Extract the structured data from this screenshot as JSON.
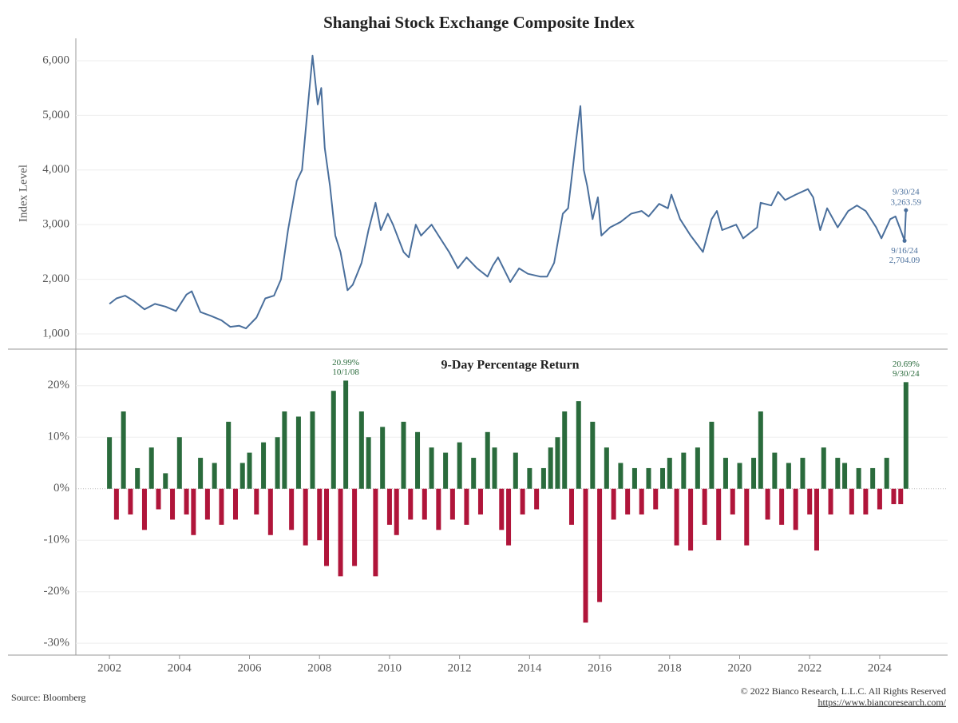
{
  "chart_data": [
    {
      "type": "line",
      "title": "Shanghai Stock Exchange Composite Index",
      "ylabel": "Index Level",
      "color": "#4a6f9c",
      "grid": true,
      "xlim": [
        2001.04,
        2025.94
      ],
      "ylim": [
        722,
        6409
      ],
      "yticks": [
        {
          "value": 1000,
          "label": "1,000"
        },
        {
          "value": 2000,
          "label": "2,000"
        },
        {
          "value": 3000,
          "label": "3,000"
        },
        {
          "value": 4000,
          "label": "4,000"
        },
        {
          "value": 5000,
          "label": "5,000"
        },
        {
          "value": 6000,
          "label": "6,000"
        }
      ],
      "x": [
        2002.0,
        2002.2,
        2002.45,
        2002.7,
        2003.0,
        2003.3,
        2003.6,
        2003.9,
        2004.2,
        2004.35,
        2004.6,
        2004.9,
        2005.2,
        2005.45,
        2005.7,
        2005.9,
        2006.2,
        2006.45,
        2006.7,
        2006.9,
        2007.1,
        2007.35,
        2007.5,
        2007.7,
        2007.8,
        2007.95,
        2008.05,
        2008.15,
        2008.3,
        2008.45,
        2008.6,
        2008.8,
        2008.95,
        2009.2,
        2009.4,
        2009.6,
        2009.75,
        2009.95,
        2010.1,
        2010.4,
        2010.55,
        2010.75,
        2010.9,
        2011.2,
        2011.4,
        2011.7,
        2011.95,
        2012.2,
        2012.5,
        2012.8,
        2012.95,
        2013.1,
        2013.45,
        2013.7,
        2013.95,
        2014.3,
        2014.5,
        2014.7,
        2014.95,
        2015.1,
        2015.3,
        2015.45,
        2015.55,
        2015.65,
        2015.8,
        2015.95,
        2016.05,
        2016.3,
        2016.6,
        2016.9,
        2017.2,
        2017.4,
        2017.7,
        2017.95,
        2018.05,
        2018.3,
        2018.6,
        2018.95,
        2019.2,
        2019.35,
        2019.5,
        2019.9,
        2020.1,
        2020.5,
        2020.6,
        2020.9,
        2021.1,
        2021.3,
        2021.6,
        2021.95,
        2022.1,
        2022.3,
        2022.5,
        2022.8,
        2023.1,
        2023.35,
        2023.6,
        2023.9,
        2024.05,
        2024.3,
        2024.45,
        2024.6,
        2024.71,
        2024.75
      ],
      "values": [
        1550,
        1650,
        1700,
        1600,
        1450,
        1550,
        1500,
        1420,
        1720,
        1780,
        1400,
        1330,
        1250,
        1130,
        1150,
        1100,
        1300,
        1650,
        1700,
        2000,
        2900,
        3800,
        4000,
        5400,
        6090,
        5200,
        5500,
        4400,
        3700,
        2800,
        2500,
        1800,
        1900,
        2300,
        2900,
        3400,
        2900,
        3200,
        3000,
        2500,
        2400,
        3000,
        2800,
        3000,
        2800,
        2500,
        2200,
        2400,
        2200,
        2050,
        2250,
        2400,
        1950,
        2200,
        2100,
        2050,
        2050,
        2300,
        3200,
        3300,
        4400,
        5170,
        4000,
        3700,
        3100,
        3500,
        2800,
        2950,
        3050,
        3200,
        3250,
        3150,
        3380,
        3300,
        3550,
        3100,
        2800,
        2500,
        3100,
        3250,
        2900,
        3000,
        2750,
        2950,
        3400,
        3350,
        3600,
        3450,
        3550,
        3650,
        3500,
        2900,
        3300,
        2950,
        3250,
        3350,
        3250,
        2950,
        2750,
        3100,
        3150,
        2900,
        2704.09,
        3263.59
      ],
      "annotations": [
        {
          "date": "9/30/24",
          "x": 2024.75,
          "value": 3263.59,
          "label": "3,263.59",
          "position": "above"
        },
        {
          "date": "9/16/24",
          "x": 2024.71,
          "value": 2704.09,
          "label": "2,704.09",
          "position": "below"
        }
      ]
    },
    {
      "type": "bar",
      "subtitle": "9-Day Percentage Return",
      "positive_color": "#2a6b3c",
      "negative_color": "#b0153a",
      "grid": true,
      "xlim": [
        2001.04,
        2025.94
      ],
      "ylim": [
        -32.3,
        27.1
      ],
      "xticks": [
        2002,
        2004,
        2006,
        2008,
        2010,
        2012,
        2014,
        2016,
        2018,
        2020,
        2022,
        2024
      ],
      "yticks": [
        {
          "value": -30,
          "label": "-30%"
        },
        {
          "value": -20,
          "label": "-20%"
        },
        {
          "value": -10,
          "label": "-10%"
        },
        {
          "value": 0,
          "label": "0%"
        },
        {
          "value": 10,
          "label": "10%"
        },
        {
          "value": 20,
          "label": "20%"
        }
      ],
      "x": [
        2002.0,
        2002.2,
        2002.4,
        2002.6,
        2002.8,
        2003.0,
        2003.2,
        2003.4,
        2003.6,
        2003.8,
        2004.0,
        2004.2,
        2004.4,
        2004.6,
        2004.8,
        2005.0,
        2005.2,
        2005.4,
        2005.6,
        2005.8,
        2006.0,
        2006.2,
        2006.4,
        2006.6,
        2006.8,
        2007.0,
        2007.2,
        2007.4,
        2007.6,
        2007.8,
        2008.0,
        2008.2,
        2008.4,
        2008.6,
        2008.75,
        2009.0,
        2009.2,
        2009.4,
        2009.6,
        2009.8,
        2010.0,
        2010.2,
        2010.4,
        2010.6,
        2010.8,
        2011.0,
        2011.2,
        2011.4,
        2011.6,
        2011.8,
        2012.0,
        2012.2,
        2012.4,
        2012.6,
        2012.8,
        2013.0,
        2013.2,
        2013.4,
        2013.6,
        2013.8,
        2014.0,
        2014.2,
        2014.4,
        2014.6,
        2014.8,
        2015.0,
        2015.2,
        2015.4,
        2015.6,
        2015.8,
        2016.0,
        2016.2,
        2016.4,
        2016.6,
        2016.8,
        2017.0,
        2017.2,
        2017.4,
        2017.6,
        2017.8,
        2018.0,
        2018.2,
        2018.4,
        2018.6,
        2018.8,
        2019.0,
        2019.2,
        2019.4,
        2019.6,
        2019.8,
        2020.0,
        2020.2,
        2020.4,
        2020.6,
        2020.8,
        2021.0,
        2021.2,
        2021.4,
        2021.6,
        2021.8,
        2022.0,
        2022.2,
        2022.4,
        2022.6,
        2022.8,
        2023.0,
        2023.2,
        2023.4,
        2023.6,
        2023.8,
        2024.0,
        2024.2,
        2024.4,
        2024.6,
        2024.75
      ],
      "values": [
        10,
        -6,
        15,
        -5,
        4,
        -8,
        8,
        -4,
        3,
        -6,
        10,
        -5,
        -9,
        6,
        -6,
        5,
        -7,
        13,
        -6,
        5,
        7,
        -5,
        9,
        -9,
        10,
        15,
        -8,
        14,
        -11,
        15,
        -10,
        -15,
        19,
        -17,
        20.99,
        -15,
        15,
        10,
        -17,
        12,
        -7,
        -9,
        13,
        -6,
        11,
        -6,
        8,
        -8,
        7,
        -6,
        9,
        -7,
        6,
        -5,
        11,
        8,
        -8,
        -11,
        7,
        -5,
        4,
        -4,
        4,
        8,
        10,
        15,
        -7,
        17,
        -26,
        13,
        -22,
        8,
        -6,
        5,
        -5,
        4,
        -5,
        4,
        -4,
        4,
        6,
        -11,
        7,
        -12,
        8,
        -7,
        13,
        -10,
        6,
        -5,
        5,
        -11,
        6,
        15,
        -6,
        7,
        -7,
        5,
        -8,
        6,
        -5,
        -12,
        8,
        -5,
        6,
        5,
        -5,
        4,
        -5,
        4,
        -4,
        6,
        -3,
        -3,
        20.69
      ],
      "annotations": [
        {
          "date": "10/1/08",
          "x": 2008.75,
          "value": 20.99,
          "label": "20.99%"
        },
        {
          "date": "9/30/24",
          "x": 2024.75,
          "value": 20.69,
          "label": "20.69%"
        }
      ]
    }
  ],
  "footer": {
    "source": "Source: Bloomberg",
    "copyright": "© 2022 Bianco Research, L.L.C. All Rights Reserved",
    "url": "https://www.biancoresearch.com/"
  }
}
